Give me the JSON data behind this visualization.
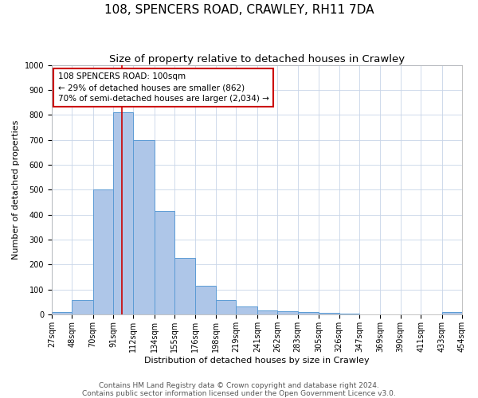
{
  "title": "108, SPENCERS ROAD, CRAWLEY, RH11 7DA",
  "subtitle": "Size of property relative to detached houses in Crawley",
  "xlabel": "Distribution of detached houses by size in Crawley",
  "ylabel": "Number of detached properties",
  "footer_line1": "Contains HM Land Registry data © Crown copyright and database right 2024.",
  "footer_line2": "Contains public sector information licensed under the Open Government Licence v3.0.",
  "bins": [
    27,
    48,
    70,
    91,
    112,
    134,
    155,
    176,
    198,
    219,
    241,
    262,
    283,
    305,
    326,
    347,
    369,
    390,
    411,
    433,
    454
  ],
  "bin_labels": [
    "27sqm",
    "48sqm",
    "70sqm",
    "91sqm",
    "112sqm",
    "134sqm",
    "155sqm",
    "176sqm",
    "198sqm",
    "219sqm",
    "241sqm",
    "262sqm",
    "283sqm",
    "305sqm",
    "326sqm",
    "347sqm",
    "369sqm",
    "390sqm",
    "411sqm",
    "433sqm",
    "454sqm"
  ],
  "values": [
    8,
    58,
    500,
    810,
    700,
    415,
    225,
    115,
    57,
    32,
    15,
    13,
    10,
    5,
    4,
    1,
    0,
    0,
    0,
    8
  ],
  "bar_color": "#aec6e8",
  "bar_edge_color": "#5b9bd5",
  "property_size": 100,
  "vline_color": "#cc0000",
  "annotation_text": "108 SPENCERS ROAD: 100sqm\n← 29% of detached houses are smaller (862)\n70% of semi-detached houses are larger (2,034) →",
  "annotation_box_color": "#ffffff",
  "annotation_box_edge_color": "#cc0000",
  "ylim": [
    0,
    1000
  ],
  "yticks": [
    0,
    100,
    200,
    300,
    400,
    500,
    600,
    700,
    800,
    900,
    1000
  ],
  "background_color": "#ffffff",
  "grid_color": "#c8d4e8",
  "title_fontsize": 11,
  "subtitle_fontsize": 9.5,
  "axis_label_fontsize": 8,
  "tick_fontsize": 7,
  "annotation_fontsize": 7.5,
  "footer_fontsize": 6.5
}
